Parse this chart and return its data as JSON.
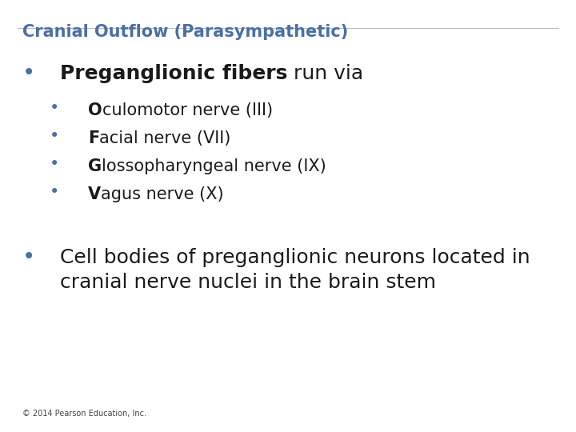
{
  "title": "Cranial Outflow (Parasympathetic)",
  "title_color": "#4a6fa5",
  "title_fontsize": 15,
  "background_color": "#FFFFFF",
  "bullet_color": "#4a6fa5",
  "text_color": "#1a1a1a",
  "footer": "© 2014 Pearson Education, Inc.",
  "footer_fontsize": 7,
  "content": [
    {
      "level": 1,
      "parts": [
        {
          "text": "Preganglionic fibers",
          "bold": true
        },
        {
          "text": " run via",
          "bold": false
        }
      ],
      "fontsize": 18
    },
    {
      "level": 2,
      "parts": [
        {
          "text": "O",
          "bold": true
        },
        {
          "text": "culomotor nerve (III)",
          "bold": false
        }
      ],
      "fontsize": 15
    },
    {
      "level": 2,
      "parts": [
        {
          "text": "F",
          "bold": true
        },
        {
          "text": "acial nerve (VII)",
          "bold": false
        }
      ],
      "fontsize": 15
    },
    {
      "level": 2,
      "parts": [
        {
          "text": "G",
          "bold": true
        },
        {
          "text": "lossopharyngeal nerve (IX)",
          "bold": false
        }
      ],
      "fontsize": 15
    },
    {
      "level": 2,
      "parts": [
        {
          "text": "V",
          "bold": true
        },
        {
          "text": "agus nerve (X)",
          "bold": false
        }
      ],
      "fontsize": 15
    },
    {
      "level": 1,
      "parts": [
        {
          "text": "Cell bodies of preganglionic neurons located in\ncranial nerve nuclei in the brain stem",
          "bold": false
        }
      ],
      "fontsize": 18
    }
  ]
}
